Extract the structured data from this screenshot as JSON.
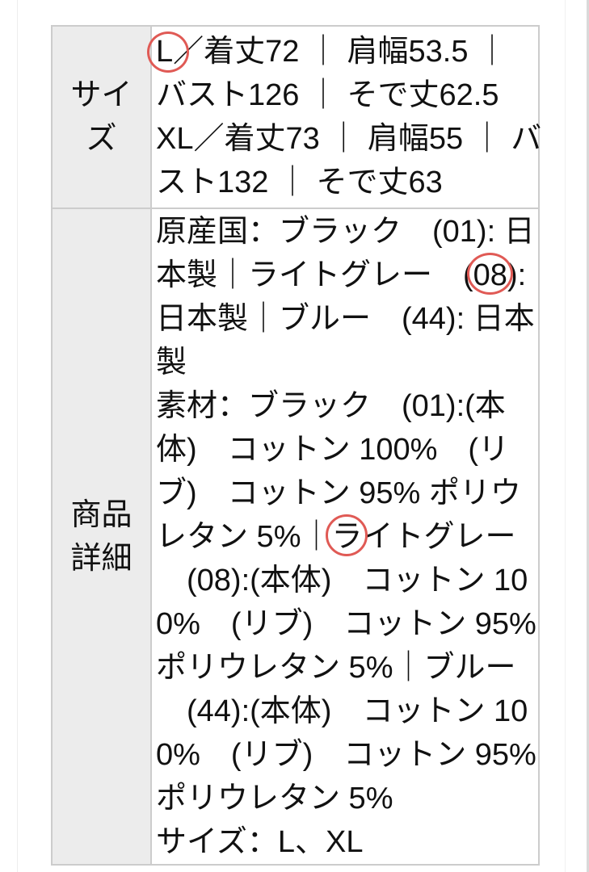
{
  "colors": {
    "page_background": "#ffffff",
    "header_cell_background": "#ececec",
    "table_border": "#cccccc",
    "text": "#111111",
    "annotation_red": "#e05a55"
  },
  "annotations": {
    "type": "hand-drawn red circles",
    "circled_texts": [
      "L",
      "08",
      "ラ"
    ]
  },
  "table": {
    "rows": [
      {
        "header_label": "サイズ",
        "header_lines": [
          "サイ",
          "ズ"
        ],
        "lines": [
          [
            {
              "text": "L",
              "circled": true,
              "circle": "cl"
            },
            {
              "text": "／着丈72 ｜ 肩幅53.5 ｜"
            }
          ],
          [
            {
              "text": "バスト126 ｜ そで丈62.5"
            }
          ],
          [
            {
              "text": "XL／着丈73 ｜ 肩幅55 ｜ バ"
            }
          ],
          [
            {
              "text": "スト132 ｜ そで丈63"
            }
          ]
        ]
      },
      {
        "header_label": "商品詳細",
        "header_lines": [
          "商品",
          "詳細"
        ],
        "lines": [
          [
            {
              "text": "原産国：ブラック　(01): 日"
            }
          ],
          [
            {
              "text": "本製｜ライトグレー　("
            },
            {
              "text": "08",
              "circled": true,
              "circle": "c08"
            },
            {
              "text": "):"
            }
          ],
          [
            {
              "text": "日本製｜ブルー　(44): 日本"
            }
          ],
          [
            {
              "text": "製"
            }
          ],
          [
            {
              "text": "素材：ブラック　(01):(本"
            }
          ],
          [
            {
              "text": "体)　コットン 100%　(リ"
            }
          ],
          [
            {
              "text": "ブ)　コットン 95% ポリウ"
            }
          ],
          [
            {
              "text": "レタン 5%｜"
            },
            {
              "text": "ラ",
              "circled": true,
              "circle": "cra"
            },
            {
              "text": "イトグレー"
            }
          ],
          [
            {
              "text": "　(08):(本体)　コットン 10"
            }
          ],
          [
            {
              "text": "0%　(リブ)　コットン 95%"
            }
          ],
          [
            {
              "text": "ポリウレタン 5%｜ブルー"
            }
          ],
          [
            {
              "text": "　(44):(本体)　コットン 10"
            }
          ],
          [
            {
              "text": "0%　(リブ)　コットン 95%"
            }
          ],
          [
            {
              "text": "ポリウレタン 5%"
            }
          ],
          [
            {
              "text": "サイズ：L、XL"
            }
          ]
        ]
      }
    ]
  }
}
